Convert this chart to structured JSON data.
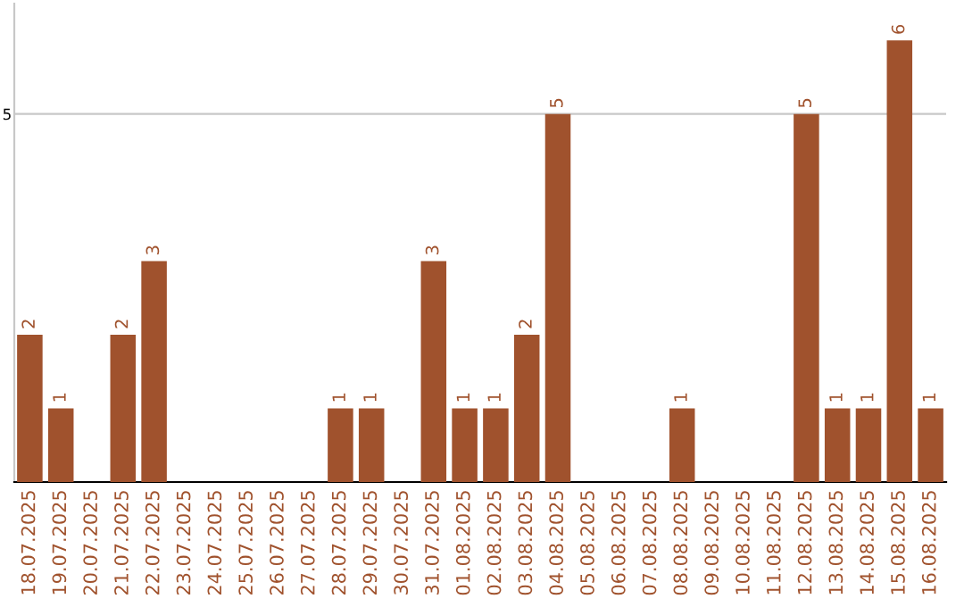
{
  "chart_data": {
    "type": "bar",
    "categories": [
      "18.07.2025",
      "19.07.2025",
      "20.07.2025",
      "21.07.2025",
      "22.07.2025",
      "23.07.2025",
      "24.07.2025",
      "25.07.2025",
      "26.07.2025",
      "27.07.2025",
      "28.07.2025",
      "29.07.2025",
      "30.07.2025",
      "31.07.2025",
      "01.08.2025",
      "02.08.2025",
      "03.08.2025",
      "04.08.2025",
      "05.08.2025",
      "06.08.2025",
      "07.08.2025",
      "08.08.2025",
      "09.08.2025",
      "10.08.2025",
      "11.08.2025",
      "12.08.2025",
      "13.08.2025",
      "14.08.2025",
      "15.08.2025",
      "16.08.2025"
    ],
    "values": [
      2,
      1,
      0,
      2,
      3,
      0,
      0,
      0,
      0,
      0,
      1,
      1,
      0,
      3,
      1,
      1,
      2,
      5,
      0,
      0,
      0,
      1,
      0,
      0,
      0,
      5,
      1,
      1,
      6,
      1
    ],
    "value_labels": [
      "2",
      "1",
      null,
      "2",
      "3",
      null,
      null,
      null,
      null,
      null,
      "1",
      "1",
      null,
      "3",
      "1",
      "1",
      "2",
      "5",
      null,
      null,
      null,
      "1",
      null,
      null,
      null,
      "5",
      "1",
      "1",
      "6",
      "1"
    ],
    "color": "#a0522d",
    "ylim": [
      0,
      6.5
    ],
    "yticks": [
      5
    ],
    "grid": "y"
  }
}
